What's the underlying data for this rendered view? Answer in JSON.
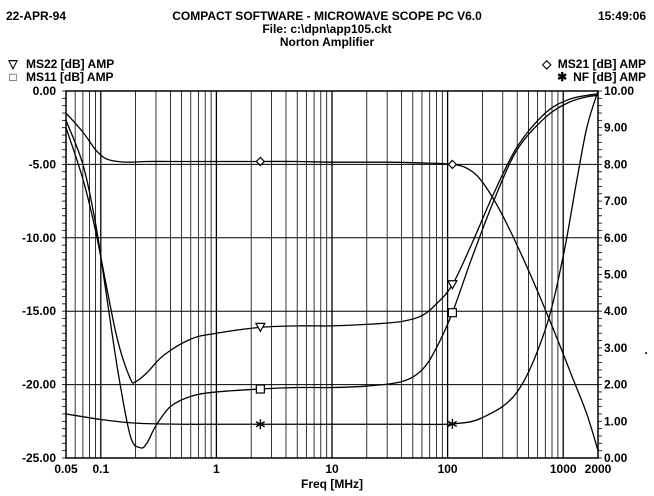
{
  "header": {
    "date": "22-APR-94",
    "title": "COMPACT SOFTWARE - MICROWAVE SCOPE PC V6.0",
    "file": "File: c:\\dpn\\app105.ckt",
    "circuit": "Norton Amplifier",
    "time": "15:49:06"
  },
  "legend": {
    "left": [
      {
        "symbol": "▽",
        "label": "MS22 [dB] AMP",
        "icon": "triangle-down-icon"
      },
      {
        "symbol": "□",
        "label": "MS11 [dB] AMP",
        "icon": "square-icon"
      }
    ],
    "right": [
      {
        "symbol": "◇",
        "label": "MS21 [dB] AMP",
        "icon": "diamond-icon"
      },
      {
        "symbol": "✱",
        "label": "NF [dB] AMP",
        "icon": "asterisk-icon"
      }
    ]
  },
  "chart_data": {
    "type": "line",
    "xlabel": "Freq [MHz]",
    "xscale": "log",
    "xlim": [
      0.05,
      2000
    ],
    "x_ticks": [
      0.05,
      0.1,
      1,
      10,
      100,
      1000,
      2000
    ],
    "x_tick_labels": [
      "0.05",
      "0.1",
      "1",
      "10",
      "100",
      "1000",
      "2000"
    ],
    "ylim_left": [
      -25,
      0
    ],
    "y_left_ticks": [
      0,
      -5,
      -10,
      -15,
      -20,
      -25
    ],
    "y_left_tick_labels": [
      "0.00",
      "-5.00",
      "-10.00",
      "-15.00",
      "-20.00",
      "-25.00"
    ],
    "ylim_right": [
      0,
      10
    ],
    "y_right_ticks": [
      10,
      9,
      8,
      7,
      6,
      5,
      4,
      3,
      2,
      1,
      0
    ],
    "y_right_tick_labels": [
      "10.00",
      "9.00",
      "8.00",
      "7.00",
      "6.00",
      "5.00",
      "4.00",
      "3.00",
      "2.00",
      "1.00",
      "0.00"
    ],
    "grid": true,
    "series": [
      {
        "name": "MS21 [dB] AMP",
        "axis": "left",
        "marker": "diamond",
        "x": [
          0.05,
          0.07,
          0.09,
          0.11,
          0.14,
          0.18,
          0.25,
          0.4,
          0.7,
          1.5,
          2.4,
          5,
          10,
          30,
          60,
          110,
          150,
          200,
          300,
          500,
          800,
          1200,
          1600,
          2000
        ],
        "y": [
          -1.5,
          -2.8,
          -4.0,
          -4.6,
          -4.8,
          -4.85,
          -4.8,
          -4.8,
          -4.8,
          -4.8,
          -4.8,
          -4.8,
          -4.85,
          -4.85,
          -4.9,
          -5.0,
          -5.3,
          -6.2,
          -8.5,
          -12.2,
          -16.0,
          -19.5,
          -22.0,
          -24.5
        ],
        "markers_x": [
          2.4,
          110
        ]
      },
      {
        "name": "MS22 [dB] AMP",
        "axis": "left",
        "marker": "triangle-down",
        "x": [
          0.05,
          0.07,
          0.09,
          0.11,
          0.14,
          0.18,
          0.2,
          0.25,
          0.35,
          0.6,
          1.0,
          2.4,
          5,
          10,
          20,
          40,
          60,
          80,
          110,
          160,
          250,
          400,
          700,
          1100,
          1600,
          2000
        ],
        "y": [
          -2.5,
          -6.0,
          -9.5,
          -13.0,
          -17.0,
          -19.6,
          -19.8,
          -19.2,
          -18.0,
          -16.9,
          -16.5,
          -16.1,
          -16.0,
          -16.0,
          -15.9,
          -15.7,
          -15.3,
          -14.5,
          -13.2,
          -10.5,
          -7.0,
          -3.8,
          -1.5,
          -0.6,
          -0.3,
          -0.2
        ]
      },
      {
        "name": "MS11 [dB] AMP",
        "axis": "left",
        "marker": "square",
        "x": [
          0.05,
          0.07,
          0.09,
          0.11,
          0.14,
          0.18,
          0.22,
          0.25,
          0.3,
          0.4,
          0.6,
          1.0,
          2.4,
          5,
          10,
          20,
          40,
          60,
          80,
          110,
          160,
          250,
          400,
          700,
          1100,
          1600,
          2000
        ],
        "y": [
          -2.0,
          -5.0,
          -9.0,
          -13.5,
          -19.0,
          -23.5,
          -24.3,
          -24.0,
          -22.8,
          -21.5,
          -20.8,
          -20.5,
          -20.3,
          -20.2,
          -20.2,
          -20.1,
          -19.8,
          -19.0,
          -17.5,
          -15.1,
          -11.5,
          -7.5,
          -4.0,
          -1.8,
          -0.8,
          -0.4,
          -0.3
        ]
      },
      {
        "name": "NF [dB] AMP",
        "axis": "right",
        "marker": "asterisk",
        "x": [
          0.05,
          0.1,
          0.2,
          0.5,
          1,
          2.4,
          10,
          50,
          110,
          200,
          400,
          700,
          1000,
          1300,
          1600,
          2000
        ],
        "y": [
          1.2,
          1.05,
          0.95,
          0.92,
          0.92,
          0.92,
          0.92,
          0.92,
          0.93,
          1.1,
          1.8,
          3.5,
          5.5,
          7.5,
          9.0,
          10.0
        ]
      }
    ],
    "annotations": [
      {
        "text": ".",
        "note": "stray dot right of right axis near 3.00"
      }
    ]
  }
}
